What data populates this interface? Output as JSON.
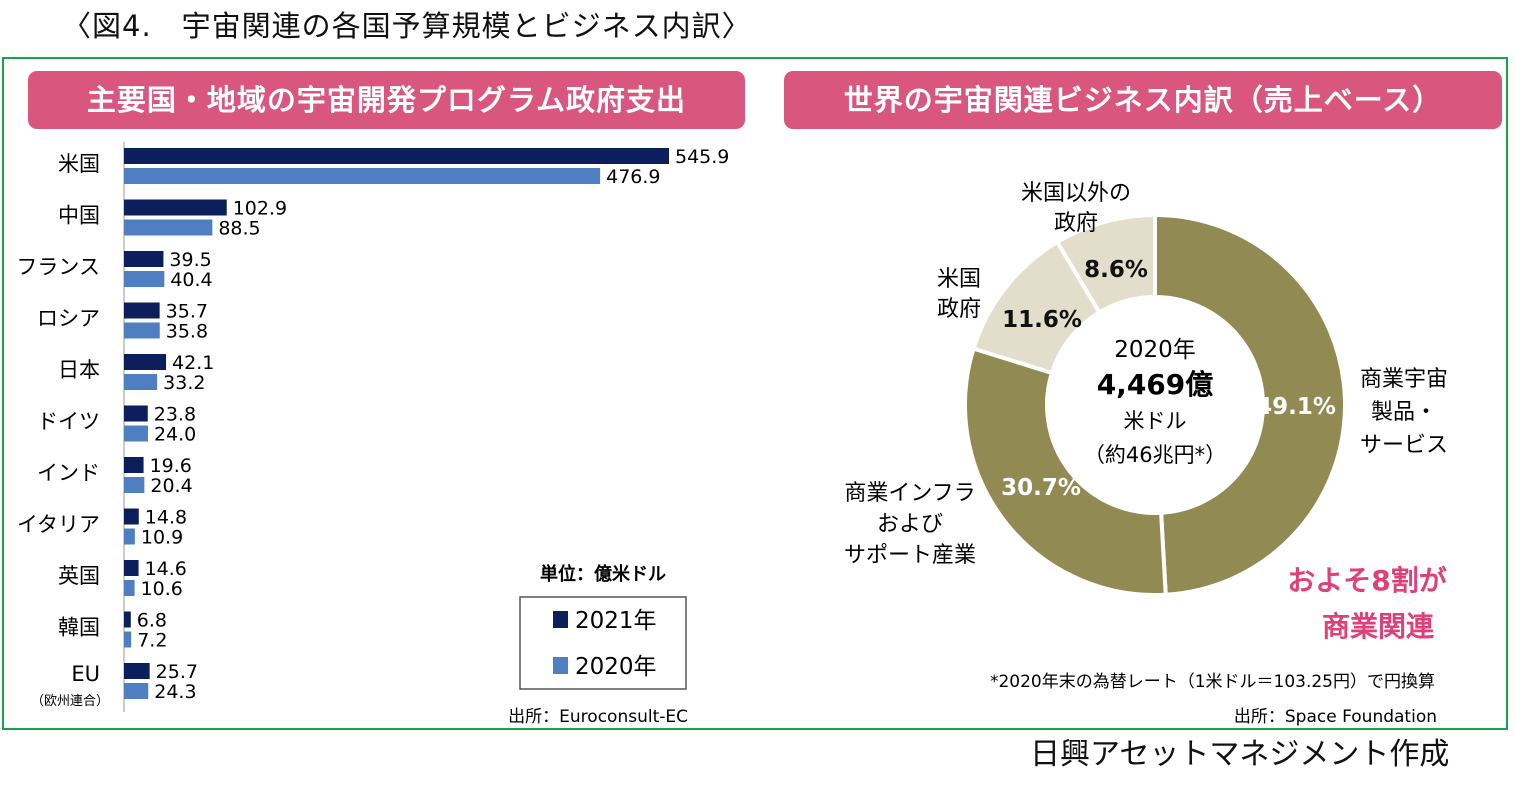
{
  "figure_title": "〈図4.　宇宙関連の各国予算規模とビジネス内訳〉",
  "credit": "日興アセットマネジメント作成",
  "colors": {
    "frame": "#18a34a",
    "banner": "#d9567f",
    "series_2021": "#0d1e5c",
    "series_2020": "#4f7fc0",
    "commercial": "#928a53",
    "government": "#e3ddcb",
    "emphasis": "#e0407a"
  },
  "left_panel": {
    "banner": "主要国・地域の宇宙開発プログラム政府支出",
    "unit": "単位：億米ドル",
    "source": "出所：Euroconsult-EC",
    "eu_sublabel": "（欧州連合）"
  },
  "right_panel": {
    "banner": "世界の宇宙関連ビジネス内訳（売上ベース）",
    "center_year": "2020年",
    "center_amount": "4,469億",
    "center_unit": "米ドル",
    "center_yen": "（約46兆円*）",
    "emphasis_line1": "およそ8割が",
    "emphasis_line2": "商業関連",
    "footnote": "*2020年末の為替レート（1米ドル＝103.25円）で円換算",
    "source": "出所：Space Foundation"
  },
  "chart_data": [
    {
      "type": "bar",
      "orientation": "horizontal",
      "title": "主要国・地域の宇宙開発プログラム政府支出",
      "unit": "億米ドル",
      "categories": [
        "米国",
        "中国",
        "フランス",
        "ロシア",
        "日本",
        "ドイツ",
        "インド",
        "イタリア",
        "英国",
        "韓国",
        "EU"
      ],
      "series": [
        {
          "name": "2021年",
          "values": [
            545.9,
            102.9,
            39.5,
            35.7,
            42.1,
            23.8,
            19.6,
            14.8,
            14.6,
            6.8,
            25.7
          ]
        },
        {
          "name": "2020年",
          "values": [
            476.9,
            88.5,
            40.4,
            35.8,
            33.2,
            24.0,
            20.4,
            10.9,
            10.6,
            7.2,
            24.3
          ]
        }
      ],
      "xlim": [
        0,
        545.9
      ],
      "legend_position": "bottom-right",
      "grid": false
    },
    {
      "type": "pie",
      "donut": true,
      "title": "世界の宇宙関連ビジネス内訳（売上ベース）",
      "slices": [
        {
          "label": "商業宇宙製品・サービス",
          "lines": [
            "商業宇宙",
            "製品・",
            "サービス"
          ],
          "value": 49.1,
          "display": "49.1%",
          "kind": "commercial"
        },
        {
          "label": "商業インフラおよびサポート産業",
          "lines": [
            "商業インフラ",
            "および",
            "サポート産業"
          ],
          "value": 30.7,
          "display": "30.7%",
          "kind": "commercial"
        },
        {
          "label": "米国政府",
          "lines": [
            "米国",
            "政府"
          ],
          "value": 11.6,
          "display": "11.6%",
          "kind": "government"
        },
        {
          "label": "米国以外の政府",
          "lines": [
            "米国以外の",
            "政府"
          ],
          "value": 8.6,
          "display": "8.6%",
          "kind": "government"
        }
      ]
    }
  ]
}
